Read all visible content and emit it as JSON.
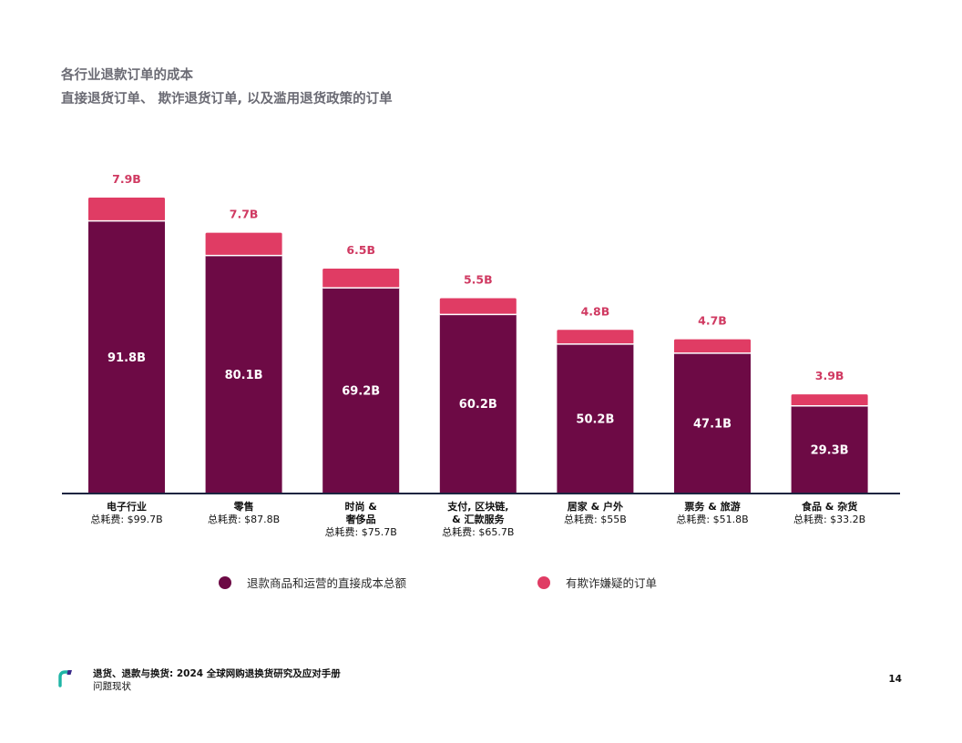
{
  "header": {
    "title": "各行业退款订单的成本",
    "subtitle": "直接退货订单、 欺诈退货订单, 以及滥用退货政策的订单"
  },
  "colors": {
    "direct": "#6d0a45",
    "fraud": "#e03c64",
    "fraud_label": "#d03a62",
    "axis": "#1c2440",
    "text_dark": "#111111",
    "text_muted": "#6b6b74"
  },
  "chart_data": {
    "type": "bar",
    "stacked": true,
    "categories": [
      [
        "电子行业"
      ],
      [
        "零售"
      ],
      [
        "时尚 &",
        "奢侈品"
      ],
      [
        "支付, 区块链,",
        "& 汇款服务"
      ],
      [
        "居家 & 户外"
      ],
      [
        "票务 & 旅游"
      ],
      [
        "食品 & 杂货"
      ]
    ],
    "totals": [
      "总耗费: $99.7B",
      "总耗费: $87.8B",
      "总耗费: $75.7B",
      "总耗费: $65.7B",
      "总耗费: $55B",
      "总耗费: $51.8B",
      "总耗费: $33.2B"
    ],
    "series": [
      {
        "name": "退款商品和运营的直接成本总额",
        "values": [
          91.8,
          80.1,
          69.2,
          60.2,
          50.2,
          47.1,
          29.3
        ],
        "labels": [
          "91.8B",
          "80.1B",
          "69.2B",
          "60.2B",
          "50.2B",
          "47.1B",
          "29.3B"
        ]
      },
      {
        "name": "有欺诈嫌疑的订单",
        "values": [
          7.9,
          7.7,
          6.5,
          5.5,
          4.8,
          4.7,
          3.9
        ],
        "labels": [
          "7.9B",
          "7.7B",
          "6.5B",
          "5.5B",
          "4.8B",
          "4.7B",
          "3.9B"
        ]
      }
    ],
    "ylim": [
      0,
      100
    ],
    "grid": false,
    "legend_position": "bottom"
  },
  "legend": {
    "direct_label": "退款商品和运营的直接成本总额",
    "fraud_label": "有欺诈嫌疑的订单"
  },
  "footer": {
    "title": "退货、退款与换货: 2024 全球网购退换货研究及应对手册",
    "subtitle": "问题现状",
    "page_number": "14"
  }
}
